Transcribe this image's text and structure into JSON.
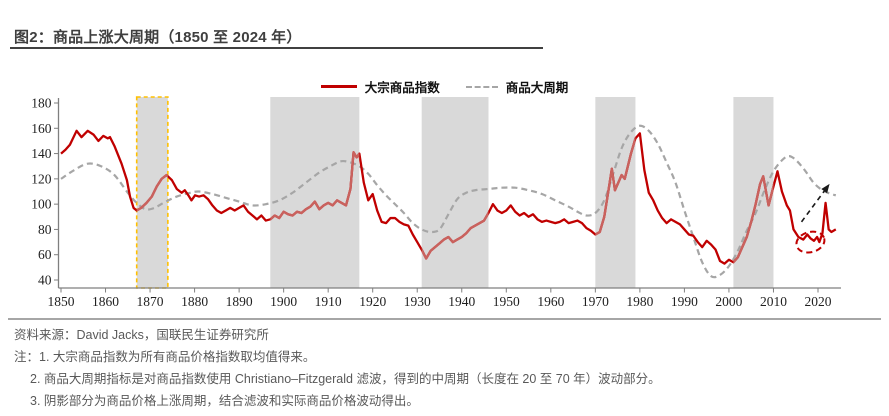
{
  "figure": {
    "title": "图2：商品上涨大周期（1850 至 2024 年）",
    "source": "资料来源：David Jacks，国联民生证券研究所",
    "notes": [
      "注：1. 大宗商品指数为所有商品价格指数取均值得来。",
      "2. 商品大周期指标是对商品指数使用 Christiano–Fitzgerald 滤波，得到的中周期（长度在 20 至 70 年）波动部分。",
      "3. 阴影部分为商品价格上涨周期，结合滤波和实际商品价格波动得出。"
    ]
  },
  "colors": {
    "index_red": "#c00000",
    "index_red_in_band": "#c9625e",
    "cycle_gray": "#a6a6a6",
    "band_fill": "#d9d9d9",
    "band_highlight_border": "#ffc000",
    "axis": "#7f7f7f",
    "tick_text": "#1f1f1f",
    "arrow": "#1a1a1a",
    "ellipse": "#c00000"
  },
  "chart_data": {
    "type": "line",
    "title": "商品上涨大周期（1850 至 2024 年）",
    "xlabel": "",
    "ylabel": "",
    "xlim": [
      1850,
      2024
    ],
    "ylim": [
      40,
      180
    ],
    "x_ticks": [
      1850,
      1860,
      1870,
      1880,
      1890,
      1900,
      1910,
      1920,
      1930,
      1940,
      1950,
      1960,
      1970,
      1980,
      1990,
      2000,
      2010,
      2020
    ],
    "y_ticks": [
      40,
      60,
      80,
      100,
      120,
      140,
      160,
      180
    ],
    "grid": false,
    "legend_position": "top-center",
    "bands": [
      {
        "from": 1867,
        "to": 1874,
        "highlight": true
      },
      {
        "from": 1897,
        "to": 1917
      },
      {
        "from": 1931,
        "to": 1946
      },
      {
        "from": 1970,
        "to": 1979
      },
      {
        "from": 2001,
        "to": 2010
      }
    ],
    "series": [
      {
        "name": "大宗商品指数",
        "style": "solid",
        "points": [
          [
            1850,
            140
          ],
          [
            1851,
            143
          ],
          [
            1852,
            147
          ],
          [
            1853.5,
            158
          ],
          [
            1854.6,
            153
          ],
          [
            1856,
            158
          ],
          [
            1857.3,
            155
          ],
          [
            1858.4,
            150
          ],
          [
            1859.5,
            154
          ],
          [
            1860.5,
            152
          ],
          [
            1861,
            153
          ],
          [
            1862,
            146
          ],
          [
            1863.6,
            132
          ],
          [
            1864.8,
            119
          ],
          [
            1865.5,
            106
          ],
          [
            1866.3,
            97
          ],
          [
            1867,
            95
          ],
          [
            1868,
            97
          ],
          [
            1869.2,
            101
          ],
          [
            1870.4,
            106
          ],
          [
            1871.5,
            114
          ],
          [
            1872.6,
            120
          ],
          [
            1873.7,
            123
          ],
          [
            1874.9,
            119
          ],
          [
            1876,
            112
          ],
          [
            1877.1,
            109
          ],
          [
            1877.8,
            111
          ],
          [
            1878.6,
            107
          ],
          [
            1879.3,
            103
          ],
          [
            1880.1,
            107
          ],
          [
            1881,
            106
          ],
          [
            1882,
            107
          ],
          [
            1883,
            104
          ],
          [
            1884,
            99
          ],
          [
            1885,
            95
          ],
          [
            1886,
            93
          ],
          [
            1887,
            95
          ],
          [
            1888,
            97
          ],
          [
            1889,
            95
          ],
          [
            1890,
            97
          ],
          [
            1891,
            99
          ],
          [
            1892,
            94
          ],
          [
            1893,
            91
          ],
          [
            1894,
            88
          ],
          [
            1895,
            91
          ],
          [
            1896,
            87
          ],
          [
            1897,
            88
          ],
          [
            1898,
            91
          ],
          [
            1899,
            89
          ],
          [
            1900,
            94
          ],
          [
            1901,
            92
          ],
          [
            1902,
            91
          ],
          [
            1903,
            94
          ],
          [
            1904,
            93
          ],
          [
            1905,
            96
          ],
          [
            1906,
            98
          ],
          [
            1907,
            102
          ],
          [
            1908,
            96
          ],
          [
            1909,
            99
          ],
          [
            1910,
            101
          ],
          [
            1911,
            99
          ],
          [
            1912,
            103
          ],
          [
            1913,
            101
          ],
          [
            1914,
            99
          ],
          [
            1915,
            112
          ],
          [
            1915.7,
            141
          ],
          [
            1916.4,
            137
          ],
          [
            1917,
            140
          ],
          [
            1918,
            117
          ],
          [
            1919,
            103
          ],
          [
            1920,
            108
          ],
          [
            1921,
            95
          ],
          [
            1922,
            86
          ],
          [
            1923,
            85
          ],
          [
            1924,
            89
          ],
          [
            1925,
            89
          ],
          [
            1926,
            86
          ],
          [
            1927,
            84
          ],
          [
            1928,
            83
          ],
          [
            1929,
            76
          ],
          [
            1930,
            70
          ],
          [
            1931,
            64
          ],
          [
            1932,
            57
          ],
          [
            1933,
            63
          ],
          [
            1934,
            66
          ],
          [
            1935,
            69
          ],
          [
            1936,
            72
          ],
          [
            1937,
            74
          ],
          [
            1938,
            70
          ],
          [
            1939,
            72
          ],
          [
            1940,
            74
          ],
          [
            1941,
            77
          ],
          [
            1942,
            81
          ],
          [
            1943,
            83
          ],
          [
            1944,
            85
          ],
          [
            1945,
            87
          ],
          [
            1946,
            93
          ],
          [
            1947,
            100
          ],
          [
            1948,
            95
          ],
          [
            1949,
            93
          ],
          [
            1950,
            95
          ],
          [
            1951,
            99
          ],
          [
            1952,
            94
          ],
          [
            1953,
            91
          ],
          [
            1954,
            93
          ],
          [
            1955,
            90
          ],
          [
            1956,
            92
          ],
          [
            1957,
            88
          ],
          [
            1958,
            86
          ],
          [
            1959,
            87
          ],
          [
            1960,
            86
          ],
          [
            1961,
            85
          ],
          [
            1962,
            86
          ],
          [
            1963,
            88
          ],
          [
            1964,
            85
          ],
          [
            1965,
            86
          ],
          [
            1966,
            87
          ],
          [
            1967,
            85
          ],
          [
            1968,
            81
          ],
          [
            1969,
            79
          ],
          [
            1970,
            76
          ],
          [
            1971,
            78
          ],
          [
            1972,
            90
          ],
          [
            1973,
            112
          ],
          [
            1973.7,
            128
          ],
          [
            1974.4,
            111
          ],
          [
            1975.9,
            123
          ],
          [
            1976.6,
            120
          ],
          [
            1978,
            140
          ],
          [
            1979,
            152
          ],
          [
            1980,
            156
          ],
          [
            1981,
            127
          ],
          [
            1982,
            109
          ],
          [
            1983,
            103
          ],
          [
            1984,
            95
          ],
          [
            1985,
            89
          ],
          [
            1986,
            85
          ],
          [
            1987,
            88
          ],
          [
            1988,
            86
          ],
          [
            1989,
            84
          ],
          [
            1990,
            80
          ],
          [
            1991,
            76
          ],
          [
            1992,
            75
          ],
          [
            1993,
            70
          ],
          [
            1994,
            66
          ],
          [
            1995,
            71
          ],
          [
            1996,
            68
          ],
          [
            1997,
            64
          ],
          [
            1998,
            55
          ],
          [
            1999,
            53
          ],
          [
            2000,
            56
          ],
          [
            2001,
            54
          ],
          [
            2002,
            58
          ],
          [
            2003,
            66
          ],
          [
            2004,
            74
          ],
          [
            2005,
            86
          ],
          [
            2006,
            100
          ],
          [
            2007,
            116
          ],
          [
            2007.7,
            122
          ],
          [
            2008.9,
            99
          ],
          [
            2010,
            114
          ],
          [
            2010.9,
            126
          ],
          [
            2011.9,
            110
          ],
          [
            2013,
            99
          ],
          [
            2013.7,
            95
          ],
          [
            2014.5,
            80
          ],
          [
            2015.6,
            74
          ],
          [
            2016.7,
            72
          ],
          [
            2017.6,
            76
          ],
          [
            2018.3,
            73
          ],
          [
            2019.1,
            71
          ],
          [
            2019.8,
            74
          ],
          [
            2020.3,
            70
          ],
          [
            2021,
            77
          ],
          [
            2021.7,
            101
          ],
          [
            2022.4,
            80
          ],
          [
            2023,
            78
          ],
          [
            2024,
            80
          ]
        ]
      },
      {
        "name": "商品大周期",
        "style": "dashed",
        "points": [
          [
            1850,
            120
          ],
          [
            1853,
            127
          ],
          [
            1856,
            132
          ],
          [
            1859,
            130
          ],
          [
            1862,
            123
          ],
          [
            1865,
            109
          ],
          [
            1867,
            101
          ],
          [
            1869,
            96
          ],
          [
            1871,
            97
          ],
          [
            1873,
            101
          ],
          [
            1876,
            106
          ],
          [
            1879,
            109
          ],
          [
            1881,
            110
          ],
          [
            1884,
            108
          ],
          [
            1887,
            105
          ],
          [
            1890,
            102
          ],
          [
            1893,
            99
          ],
          [
            1896,
            100
          ],
          [
            1899,
            103
          ],
          [
            1902,
            109
          ],
          [
            1905,
            117
          ],
          [
            1908,
            125
          ],
          [
            1911,
            131
          ],
          [
            1913,
            134
          ],
          [
            1915,
            133
          ],
          [
            1917,
            130
          ],
          [
            1919,
            124
          ],
          [
            1921,
            115
          ],
          [
            1923,
            107
          ],
          [
            1925,
            100
          ],
          [
            1927,
            93
          ],
          [
            1929,
            85
          ],
          [
            1931,
            80
          ],
          [
            1933,
            78
          ],
          [
            1935,
            80
          ],
          [
            1937,
            92
          ],
          [
            1939,
            104
          ],
          [
            1941,
            109
          ],
          [
            1943,
            111
          ],
          [
            1946,
            112
          ],
          [
            1949,
            113
          ],
          [
            1952,
            113
          ],
          [
            1955,
            111
          ],
          [
            1958,
            108
          ],
          [
            1961,
            103
          ],
          [
            1964,
            98
          ],
          [
            1966,
            94
          ],
          [
            1968,
            91
          ],
          [
            1970,
            93
          ],
          [
            1972,
            103
          ],
          [
            1974,
            124
          ],
          [
            1976,
            145
          ],
          [
            1978,
            157
          ],
          [
            1980,
            162
          ],
          [
            1982,
            158
          ],
          [
            1984,
            148
          ],
          [
            1986,
            133
          ],
          [
            1988,
            117
          ],
          [
            1990,
            95
          ],
          [
            1992,
            74
          ],
          [
            1994,
            54
          ],
          [
            1996,
            43
          ],
          [
            1998,
            44
          ],
          [
            2000,
            51
          ],
          [
            2002,
            63
          ],
          [
            2004,
            79
          ],
          [
            2006,
            93
          ],
          [
            2008,
            111
          ],
          [
            2010,
            126
          ],
          [
            2012,
            135
          ],
          [
            2013.5,
            138
          ],
          [
            2015,
            135
          ],
          [
            2017,
            127
          ],
          [
            2019,
            117
          ],
          [
            2021,
            111
          ],
          [
            2023,
            108
          ],
          [
            2024,
            107
          ]
        ]
      }
    ],
    "annotations": {
      "arrow": {
        "type": "dashed-arrow",
        "from": [
          2016.3,
          86
        ],
        "to": [
          2022.6,
          116
        ]
      },
      "ellipse": {
        "type": "dashed-ellipse",
        "center": [
          2018.3,
          70
        ],
        "rx_years": 3.2,
        "ry_value": 8,
        "rotate_deg": -15
      }
    }
  }
}
